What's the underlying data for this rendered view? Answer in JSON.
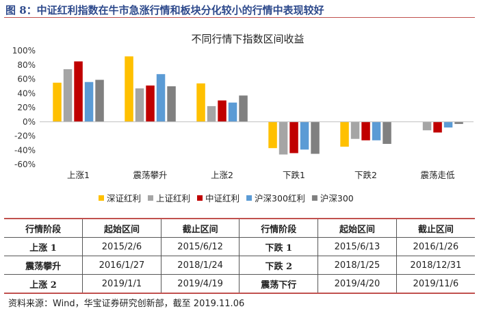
{
  "figure_title": "图 8：中证红利指数在牛市急涨行情和板块分化较小的行情中表现较好",
  "chart_data": {
    "type": "bar",
    "title": "不同行情下指数区间收益",
    "categories": [
      "上涨1",
      "震荡攀升",
      "上涨2",
      "下跌1",
      "下跌2",
      "震荡走低"
    ],
    "series": [
      {
        "name": "深证红利",
        "color": "#FFC000",
        "values": [
          55,
          92,
          54,
          -37,
          -35,
          0
        ]
      },
      {
        "name": "上证红利",
        "color": "#A5A5A5",
        "values": [
          74,
          47,
          22,
          -46,
          -24,
          -12
        ]
      },
      {
        "name": "中证红利",
        "color": "#C00000",
        "values": [
          85,
          51,
          30,
          -44,
          -26,
          -15
        ]
      },
      {
        "name": "沪深300红利",
        "color": "#5B9BD5",
        "values": [
          56,
          67,
          27,
          -39,
          -26,
          -8
        ]
      },
      {
        "name": "沪深300",
        "color": "#808080",
        "values": [
          59,
          50,
          37,
          -45,
          -31,
          -3
        ]
      }
    ],
    "ylim": [
      -60,
      100
    ],
    "yticks": [
      "100%",
      "80%",
      "60%",
      "40%",
      "20%",
      "0%",
      "-20%",
      "-40%",
      "-60%"
    ],
    "ytick_values": [
      100,
      80,
      60,
      40,
      20,
      0,
      -20,
      -40,
      -60
    ],
    "legend": "bottom",
    "grid": false
  },
  "table": {
    "rows": [
      [
        "行情阶段",
        "起始区间",
        "截止区间",
        "行情阶段",
        "起始区间",
        "截止区间"
      ],
      [
        "上涨 1",
        "2015/2/6",
        "2015/6/12",
        "下跌 1",
        "2015/6/13",
        "2016/1/26"
      ],
      [
        "震荡攀升",
        "2016/1/27",
        "2018/1/24",
        "下跌 2",
        "2018/1/25",
        "2018/12/31"
      ],
      [
        "上涨 2",
        "2019/1/1",
        "2019/4/19",
        "震荡下行",
        "2019/4/20",
        "2019/11/6"
      ]
    ]
  },
  "source_note": "资料来源：Wind，华宝证券研究创新部，截至 2019.11.06"
}
